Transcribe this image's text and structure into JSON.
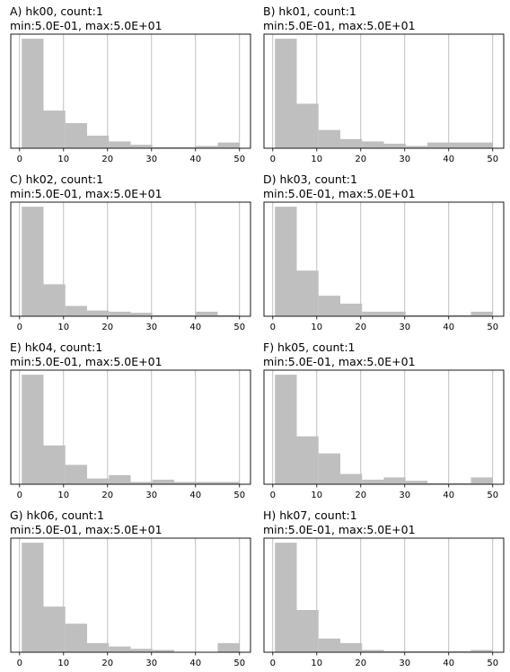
{
  "colors": {
    "bar": "#bfbfbf",
    "grid": "#b0b0b0",
    "frame": "#000000"
  },
  "chart_data": [
    {
      "type": "bar",
      "letter": "A",
      "title_line1": "A) hk00, count:1",
      "title_line2": "min:5.0E-01, max:5.0E+01",
      "bin_edges": [
        0.5,
        5.45,
        10.4,
        15.35,
        20.3,
        25.25,
        30.2,
        35.15,
        40.1,
        45.05,
        50.0
      ],
      "values": [
        96,
        33,
        22,
        11,
        6,
        3,
        1,
        1,
        2,
        5
      ],
      "xlim": [
        -2,
        52.5
      ],
      "ylim": [
        0,
        100
      ],
      "xticks": [
        0,
        10,
        20,
        30,
        40,
        50
      ],
      "xtick_labels": [
        "0",
        "10",
        "20",
        "30",
        "40",
        "50"
      ],
      "grid": "x"
    },
    {
      "type": "bar",
      "letter": "B",
      "title_line1": "B) hk01, count:1",
      "title_line2": "min:5.0E-01, max:5.0E+01",
      "bin_edges": [
        0.5,
        5.45,
        10.4,
        15.35,
        20.3,
        25.25,
        30.2,
        35.15,
        40.1,
        45.05,
        50.0
      ],
      "values": [
        96,
        39,
        16,
        8,
        6,
        4,
        2,
        5,
        5,
        5
      ],
      "xlim": [
        -2,
        52.5
      ],
      "ylim": [
        0,
        100
      ],
      "xticks": [
        0,
        10,
        20,
        30,
        40,
        50
      ],
      "xtick_labels": [
        "0",
        "10",
        "20",
        "30",
        "40",
        "50"
      ],
      "grid": "x"
    },
    {
      "type": "bar",
      "letter": "C",
      "title_line1": "C) hk02, count:1",
      "title_line2": "min:5.0E-01, max:5.0E+01",
      "bin_edges": [
        0.5,
        5.45,
        10.4,
        15.35,
        20.3,
        25.25,
        30.2,
        35.15,
        40.1,
        45.05,
        50.0
      ],
      "values": [
        96,
        28,
        9,
        5,
        4,
        3,
        1,
        1,
        4,
        1
      ],
      "xlim": [
        -2,
        52.5
      ],
      "ylim": [
        0,
        100
      ],
      "xticks": [
        0,
        10,
        20,
        30,
        40,
        50
      ],
      "xtick_labels": [
        "0",
        "10",
        "20",
        "30",
        "40",
        "50"
      ],
      "grid": "x"
    },
    {
      "type": "bar",
      "letter": "D",
      "title_line1": "D) hk03, count:1",
      "title_line2": "min:5.0E-01, max:5.0E+01",
      "bin_edges": [
        0.5,
        5.45,
        10.4,
        15.35,
        20.3,
        25.25,
        30.2,
        35.15,
        40.1,
        45.05,
        50.0
      ],
      "values": [
        96,
        40,
        18,
        11,
        4,
        4,
        1,
        1,
        1,
        4
      ],
      "xlim": [
        -2,
        52.5
      ],
      "ylim": [
        0,
        100
      ],
      "xticks": [
        0,
        10,
        20,
        30,
        40,
        50
      ],
      "xtick_labels": [
        "0",
        "10",
        "20",
        "30",
        "40",
        "50"
      ],
      "grid": "x"
    },
    {
      "type": "bar",
      "letter": "E",
      "title_line1": "E) hk04, count:1",
      "title_line2": "min:5.0E-01, max:5.0E+01",
      "bin_edges": [
        0.5,
        5.45,
        10.4,
        15.35,
        20.3,
        25.25,
        30.2,
        35.15,
        40.1,
        45.05,
        50.0
      ],
      "values": [
        96,
        34,
        17,
        5,
        8,
        2,
        4,
        2,
        2,
        2
      ],
      "xlim": [
        -2,
        52.5
      ],
      "ylim": [
        0,
        100
      ],
      "xticks": [
        0,
        10,
        20,
        30,
        40,
        50
      ],
      "xtick_labels": [
        "0",
        "10",
        "20",
        "30",
        "40",
        "50"
      ],
      "grid": "x"
    },
    {
      "type": "bar",
      "letter": "F",
      "title_line1": "F) hk05, count:1",
      "title_line2": "min:5.0E-01, max:5.0E+01",
      "bin_edges": [
        0.5,
        5.45,
        10.4,
        15.35,
        20.3,
        25.25,
        30.2,
        35.15,
        40.1,
        45.05,
        50.0
      ],
      "values": [
        96,
        42,
        27,
        9,
        4,
        6,
        3,
        1,
        1,
        6
      ],
      "xlim": [
        -2,
        52.5
      ],
      "ylim": [
        0,
        100
      ],
      "xticks": [
        0,
        10,
        20,
        30,
        40,
        50
      ],
      "xtick_labels": [
        "0",
        "10",
        "20",
        "30",
        "40",
        "50"
      ],
      "grid": "x"
    },
    {
      "type": "bar",
      "letter": "G",
      "title_line1": "G) hk06, count:1",
      "title_line2": "min:5.0E-01, max:5.0E+01",
      "bin_edges": [
        0.5,
        5.45,
        10.4,
        15.35,
        20.3,
        25.25,
        30.2,
        35.15,
        40.1,
        45.05,
        50.0
      ],
      "values": [
        96,
        40,
        25,
        8,
        5,
        3,
        2,
        0,
        0,
        8
      ],
      "xlim": [
        -2,
        52.5
      ],
      "ylim": [
        0,
        100
      ],
      "xticks": [
        0,
        10,
        20,
        30,
        40,
        50
      ],
      "xtick_labels": [
        "0",
        "10",
        "20",
        "30",
        "40",
        "50"
      ],
      "grid": "x"
    },
    {
      "type": "bar",
      "letter": "H",
      "title_line1": "H) hk07, count:1",
      "title_line2": "min:5.0E-01, max:5.0E+01",
      "bin_edges": [
        0.5,
        5.45,
        10.4,
        15.35,
        20.3,
        25.25,
        30.2,
        35.15,
        40.1,
        45.05,
        50.0
      ],
      "values": [
        96,
        37,
        12,
        8,
        2,
        1,
        1,
        1,
        1,
        2
      ],
      "xlim": [
        -2,
        52.5
      ],
      "ylim": [
        0,
        100
      ],
      "xticks": [
        0,
        10,
        20,
        30,
        40,
        50
      ],
      "xtick_labels": [
        "0",
        "10",
        "20",
        "30",
        "40",
        "50"
      ],
      "grid": "x"
    }
  ]
}
